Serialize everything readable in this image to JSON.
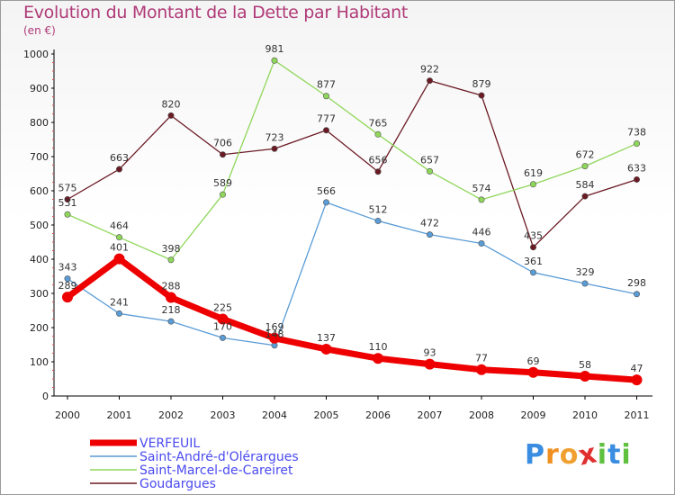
{
  "title": "Evolution du Montant de la Dette par Habitant",
  "unit_label": "(en €)",
  "logo": {
    "letters": [
      "P",
      "r",
      "o",
      "x",
      "i",
      "t",
      "i"
    ],
    "colors": [
      "#3a8de0",
      "#f09020",
      "#f0a030",
      "#e03030",
      "#60c040",
      "#3a8de0",
      "#60c040"
    ]
  },
  "chart_data": {
    "type": "line",
    "title": "Evolution du Montant de la Dette par Habitant",
    "ylabel": "(en €)",
    "ylim": [
      0,
      1000
    ],
    "yticks": [
      "0",
      "100",
      "200",
      "300",
      "400",
      "500",
      "600",
      "700",
      "800",
      "900",
      "1000"
    ],
    "grid": false,
    "legend_position": "bottom-left",
    "x": [
      "2000",
      "2001",
      "2002",
      "2003",
      "2004",
      "2005",
      "2006",
      "2007",
      "2008",
      "2009",
      "2010",
      "2011"
    ],
    "series": [
      {
        "name": "Goudargues",
        "color": "#6b1a24",
        "values": [
          575,
          663,
          820,
          706,
          723,
          777,
          656,
          922,
          879,
          435,
          584,
          633
        ]
      },
      {
        "name": "Saint-Marcel-de-Careiret",
        "color": "#8fd75a",
        "values": [
          531,
          464,
          398,
          589,
          981,
          877,
          765,
          657,
          574,
          619,
          672,
          738
        ]
      },
      {
        "name": "Saint-André-d'Olérargues",
        "color": "#5a9cd6",
        "values": [
          343,
          241,
          218,
          170,
          148,
          566,
          512,
          472,
          446,
          361,
          329,
          298
        ]
      },
      {
        "name": "VERFEUIL",
        "color": "#ee0000",
        "values": [
          289,
          401,
          288,
          225,
          169,
          137,
          110,
          93,
          77,
          69,
          58,
          47
        ]
      }
    ]
  }
}
